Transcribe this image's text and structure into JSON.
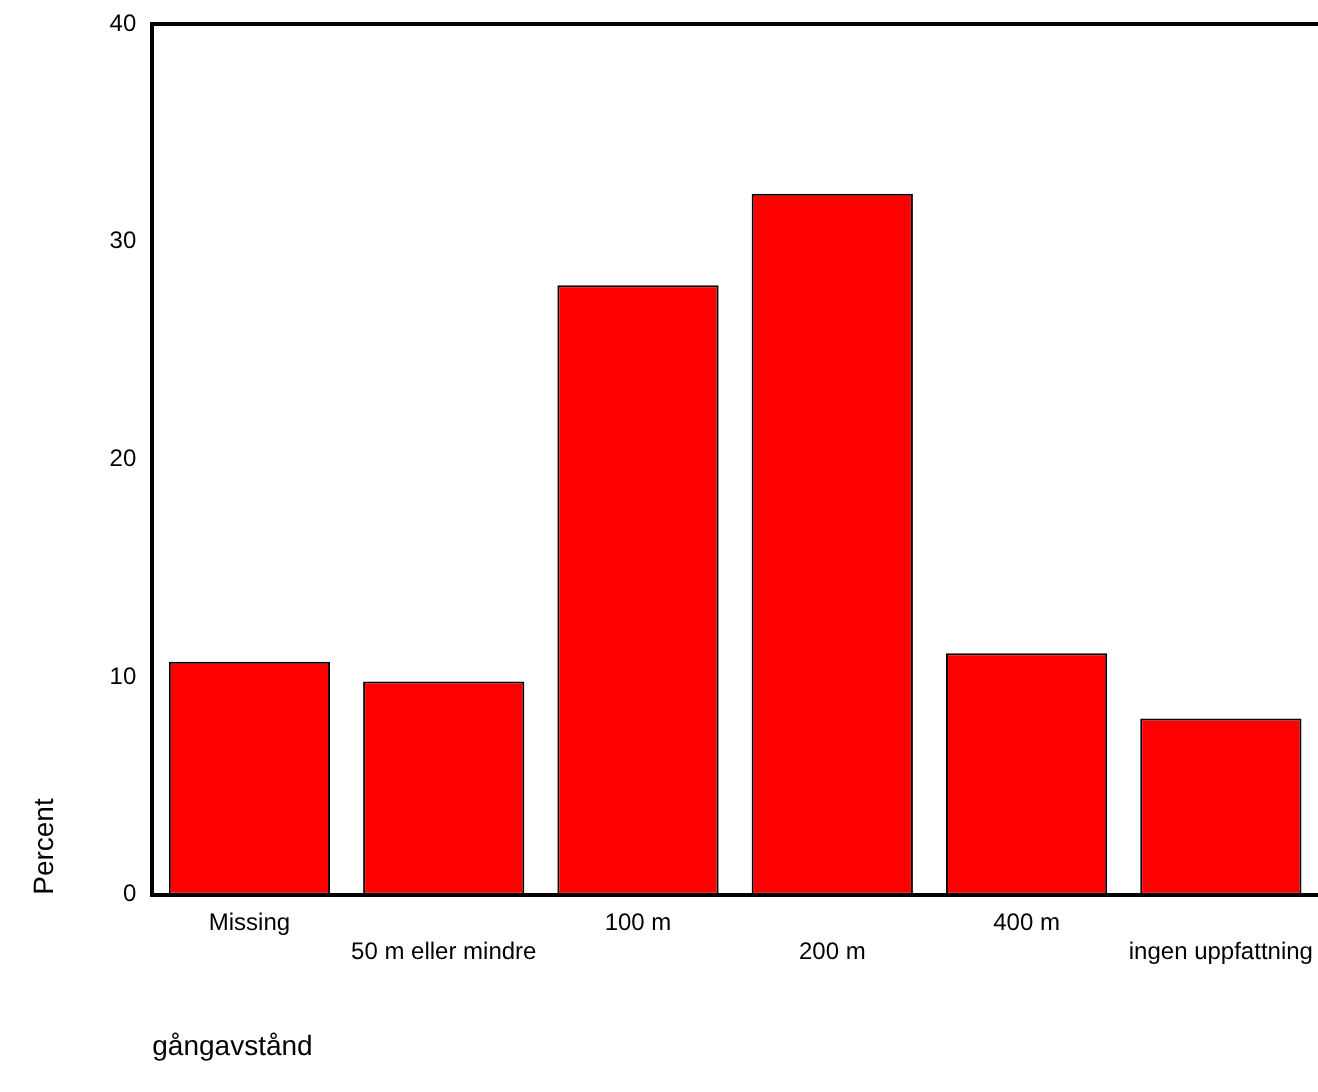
{
  "chart_data": {
    "type": "bar",
    "xlabel": "gångavstånd",
    "ylabel": "Percent",
    "categories": [
      "Missing",
      "50 m eller mindre",
      "100 m",
      "200 m",
      "400 m",
      "ingen uppfattning"
    ],
    "values": [
      10.7,
      9.8,
      28.0,
      32.2,
      11.1,
      8.1
    ],
    "color": "#ff0000",
    "ylim": [
      0,
      40
    ],
    "yticks": [
      0,
      10,
      20,
      30,
      40
    ],
    "grid": false,
    "legend": false
  }
}
